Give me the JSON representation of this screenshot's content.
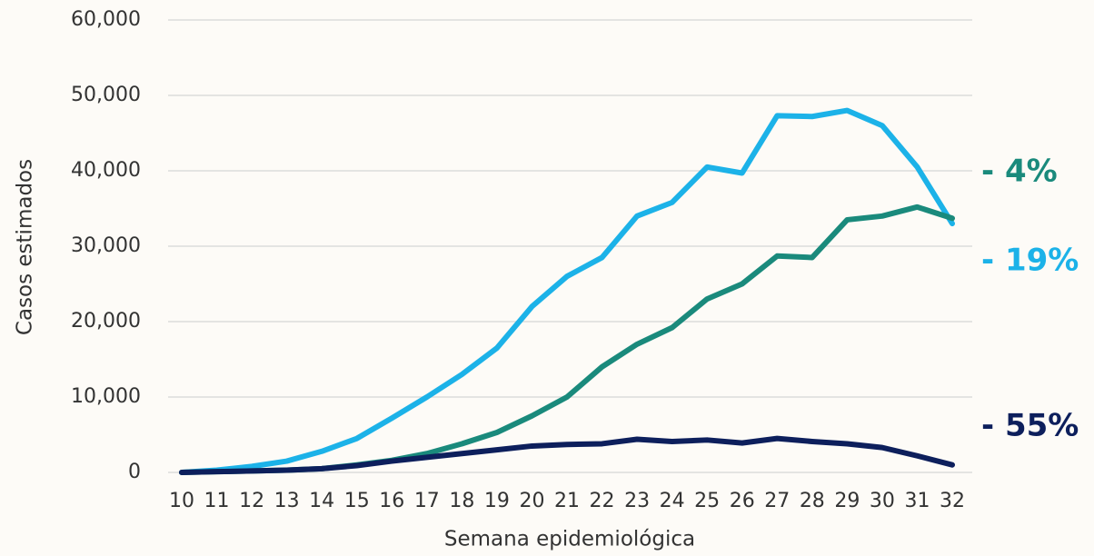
{
  "chart_data": {
    "type": "line",
    "x_label": "Semana epidemiológica",
    "y_label": "Casos estimados",
    "x": [
      10,
      11,
      12,
      13,
      14,
      15,
      16,
      17,
      18,
      19,
      20,
      21,
      22,
      23,
      24,
      25,
      26,
      27,
      28,
      29,
      30,
      31,
      32
    ],
    "xlim": [
      10,
      32
    ],
    "ylim": [
      0,
      60000
    ],
    "yticks": [
      0,
      {
        "value": 10000,
        "label": "10,000"
      },
      {
        "value": 20000,
        "label": "20,000"
      },
      {
        "value": 30000,
        "label": "30,000"
      },
      {
        "value": 40000,
        "label": "40,000"
      },
      {
        "value": 50000,
        "label": "50,000"
      },
      {
        "value": 60000,
        "label": "60,000"
      }
    ],
    "grid": true,
    "series": [
      {
        "color": "#1cb2e8",
        "end_label": "- 19%",
        "values": [
          0,
          300,
          800,
          1500,
          2800,
          4500,
          7200,
          10000,
          13000,
          16500,
          22000,
          26000,
          28500,
          34000,
          35800,
          40500,
          39700,
          47300,
          47200,
          48000,
          46000,
          40500,
          33000
        ]
      },
      {
        "color": "#1a8a7c",
        "end_label": "- 4%",
        "values": [
          0,
          100,
          200,
          300,
          500,
          1000,
          1600,
          2500,
          3800,
          5300,
          7500,
          10000,
          14000,
          17000,
          19200,
          23000,
          25000,
          28700,
          28500,
          33500,
          34000,
          35200,
          33700
        ]
      },
      {
        "color": "#0d1f5c",
        "end_label": "- 55%",
        "values": [
          0,
          100,
          200,
          300,
          500,
          900,
          1500,
          2000,
          2500,
          3000,
          3500,
          3700,
          3800,
          4400,
          4100,
          4300,
          3900,
          4500,
          4100,
          3800,
          3300,
          2200,
          1000
        ]
      }
    ]
  }
}
